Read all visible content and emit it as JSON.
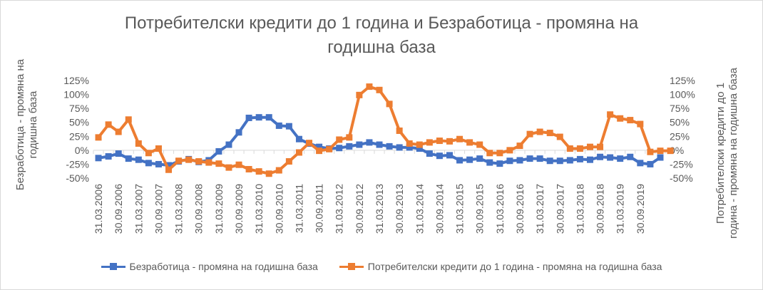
{
  "chart_data": {
    "type": "line",
    "title": "Потребителски кредити до 1 година и Безработица - промяна на годишна база",
    "title_lines": [
      "Потребителски кредити до 1 година и Безработица - промяна на",
      "годишна база"
    ],
    "ylabel_left": "Безработица - промяна на годишна база",
    "ylabel_left_lines": [
      "Безработица - промяна на",
      "годишна база"
    ],
    "ylabel_right": "Потребителски кредити до 1 година - промяна на годишна база",
    "ylabel_right_lines": [
      "Потребителски кредити до 1",
      "година - промяна на годишна база"
    ],
    "ylim": [
      -50,
      125
    ],
    "yticks": [
      -50,
      -25,
      0,
      25,
      50,
      75,
      100,
      125
    ],
    "ytick_labels": [
      "-50%",
      "-25%",
      "0%",
      "25%",
      "50%",
      "75%",
      "100%",
      "125%"
    ],
    "y2lim": [
      -50,
      125
    ],
    "y2ticks": [
      -50,
      -25,
      0,
      25,
      50,
      75,
      100,
      125
    ],
    "y2tick_labels": [
      "-50%",
      "-25%",
      "0%",
      "25%",
      "50%",
      "75%",
      "100%",
      "125%"
    ],
    "grid": false,
    "legend_position": "bottom",
    "xtick_labels": [
      "31.03.2006",
      "30.09.2006",
      "31.03.2007",
      "30.09.2007",
      "31.03.2008",
      "30.09.2008",
      "31.03.2009",
      "30.09.2009",
      "31.03.2010",
      "30.09.2010",
      "31.03.2011",
      "30.09.2011",
      "31.03.2012",
      "30.09.2012",
      "31.03.2013",
      "30.09.2013",
      "31.03.2014",
      "30.09.2014",
      "31.03.2015",
      "30.09.2015",
      "31.03.2016",
      "30.09.2016",
      "31.03.2017",
      "30.09.2017",
      "31.03.2018",
      "30.09.2018",
      "31.03.2019",
      "30.09.2019"
    ],
    "series": [
      {
        "name": "Безработица - промяна на годишна база",
        "axis": "left",
        "color": "#4472c4",
        "values": [
          -14,
          -11,
          -6,
          -15,
          -17,
          -23,
          -25,
          -27,
          -20,
          -16,
          -21,
          -18,
          -2,
          10,
          32,
          58,
          59,
          59,
          44,
          43,
          20,
          12,
          6,
          3,
          4,
          7,
          10,
          14,
          10,
          7,
          5,
          5,
          3,
          -6,
          -10,
          -9,
          -18,
          -17,
          -15,
          -22,
          -24,
          -19,
          -18,
          -15,
          -15,
          -19,
          -19,
          -18,
          -16,
          -17,
          -12,
          -13,
          -15,
          -12,
          -23,
          -25,
          -13
        ]
      },
      {
        "name": "Потребителски кредити до 1  година - промяна на годишна база",
        "axis": "right",
        "color": "#ed7d31",
        "values": [
          23,
          46,
          33,
          55,
          12,
          -5,
          3,
          -35,
          -19,
          -17,
          -20,
          -22,
          -24,
          -31,
          -26,
          -34,
          -38,
          -42,
          -36,
          -20,
          -4,
          13,
          -1,
          2,
          19,
          23,
          99,
          114,
          108,
          83,
          35,
          12,
          10,
          14,
          17,
          16,
          20,
          14,
          10,
          -5,
          -5,
          0,
          8,
          29,
          33,
          31,
          24,
          3,
          3,
          6,
          6,
          64,
          57,
          54,
          47,
          -3,
          -1,
          -1
        ]
      }
    ]
  }
}
